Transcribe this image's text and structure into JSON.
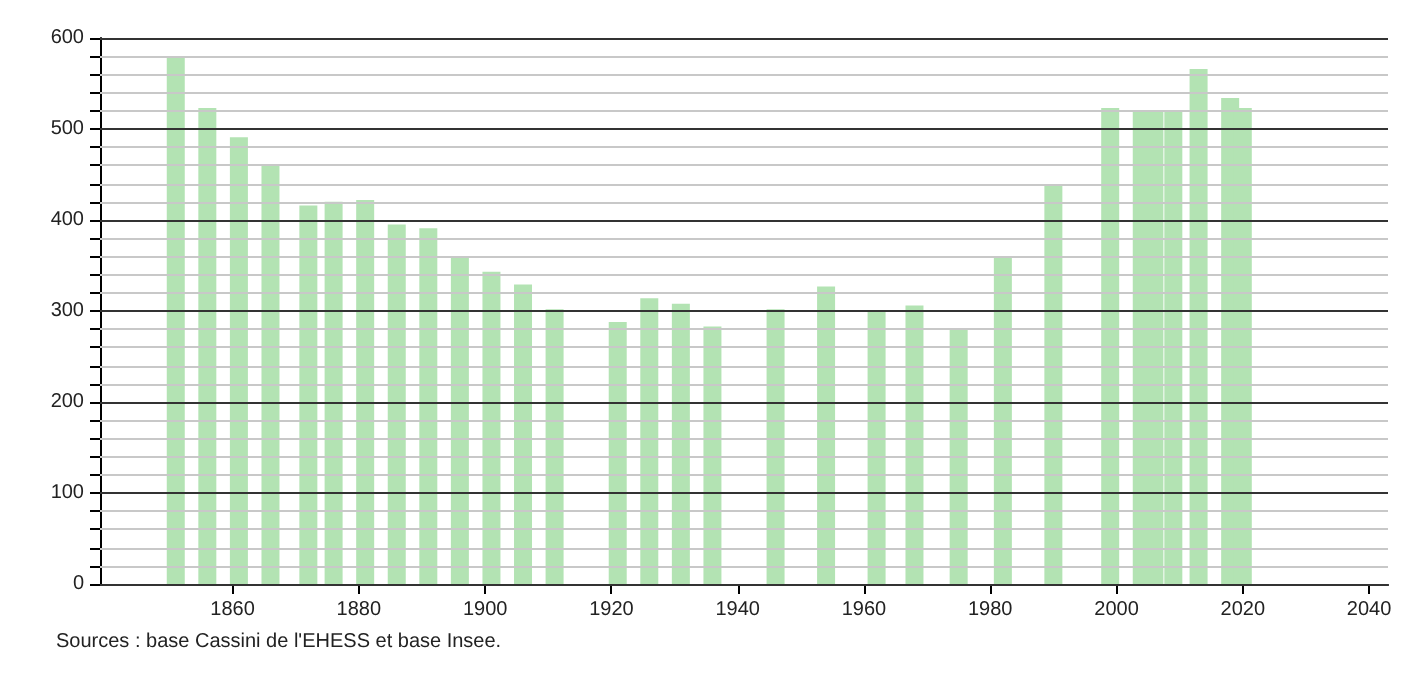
{
  "chart_data": {
    "type": "bar",
    "x": [
      1851,
      1856,
      1861,
      1866,
      1872,
      1876,
      1881,
      1886,
      1891,
      1896,
      1901,
      1906,
      1911,
      1921,
      1926,
      1931,
      1936,
      1946,
      1954,
      1962,
      1968,
      1975,
      1982,
      1990,
      1999,
      2004,
      2006,
      2009,
      2013,
      2018,
      2020
    ],
    "values": [
      579,
      523,
      491,
      461,
      416,
      420,
      422,
      395,
      391,
      360,
      343,
      329,
      302,
      288,
      314,
      308,
      283,
      302,
      327,
      300,
      306,
      281,
      360,
      439,
      523,
      521,
      519,
      519,
      566,
      534,
      523
    ],
    "color": "#b3e3b3",
    "xlim": [
      1839,
      2043
    ],
    "xticks": [
      1860,
      1880,
      1900,
      1920,
      1940,
      1960,
      1980,
      2000,
      2020,
      2040
    ],
    "ylim": [
      0,
      600
    ],
    "yticks": [
      0,
      {
        "value": 20,
        "label": null
      },
      {
        "value": 40,
        "label": null
      },
      {
        "value": 60,
        "label": null
      },
      {
        "value": 80,
        "label": null
      },
      100,
      {
        "value": 120,
        "label": null
      },
      {
        "value": 140,
        "label": null
      },
      {
        "value": 160,
        "label": null
      },
      {
        "value": 180,
        "label": null
      },
      200,
      {
        "value": 220,
        "label": null
      },
      {
        "value": 240,
        "label": null
      },
      {
        "value": 260,
        "label": null
      },
      {
        "value": 280,
        "label": null
      },
      300,
      {
        "value": 320,
        "label": null
      },
      {
        "value": 340,
        "label": null
      },
      {
        "value": 360,
        "label": null
      },
      {
        "value": 380,
        "label": null
      },
      400,
      {
        "value": 420,
        "label": null
      },
      {
        "value": 440,
        "label": null
      },
      {
        "value": 460,
        "label": null
      },
      {
        "value": 480,
        "label": null
      },
      500,
      {
        "value": 520,
        "label": null
      },
      {
        "value": 540,
        "label": null
      },
      {
        "value": 560,
        "label": null
      },
      {
        "value": 580,
        "label": null
      },
      600
    ],
    "grid": "y",
    "annotations": [
      "Sources : base Cassini de l'EHESS et base Insee."
    ]
  }
}
